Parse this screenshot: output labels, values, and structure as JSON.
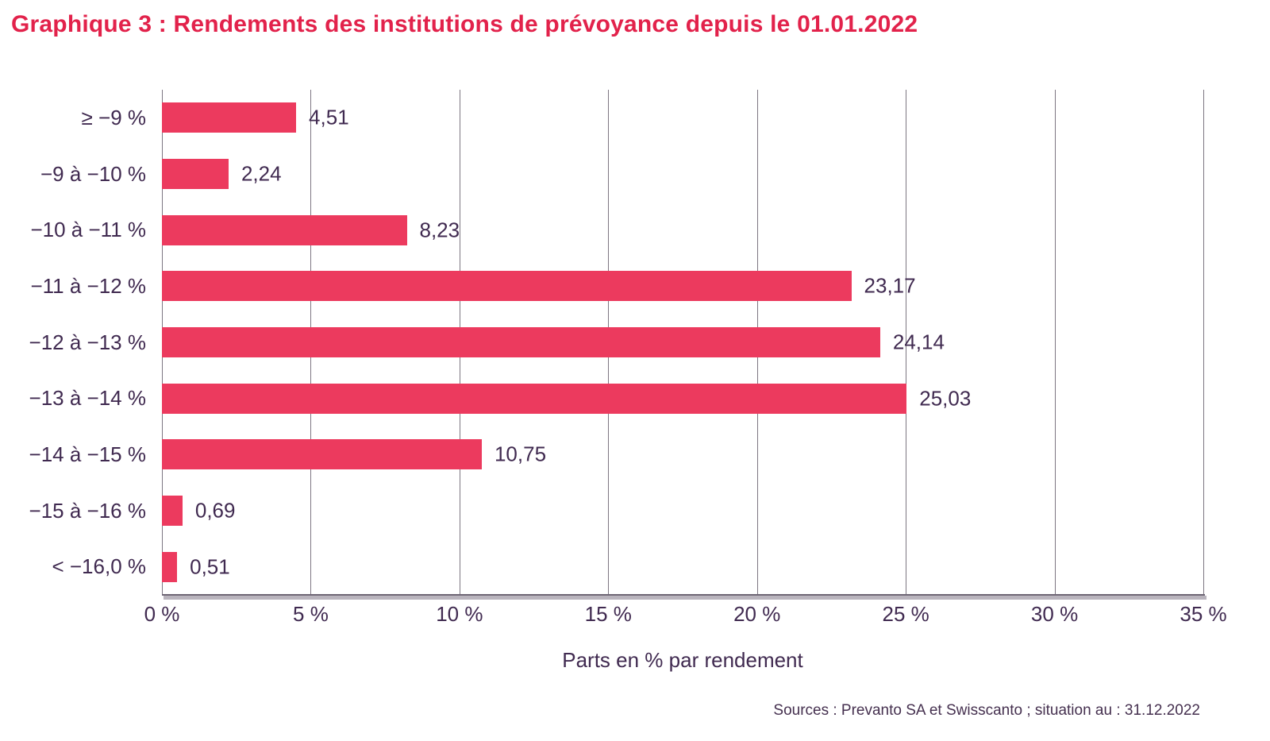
{
  "title": "Graphique 3 : Rendements des institutions de prévoyance depuis le 01.01.2022",
  "source_note": "Sources : Prevanto SA et Swisscanto ; situation au : 31.12.2022",
  "colors": {
    "title": "#E2224B",
    "bar": "#EC3A5E",
    "text": "#402A50",
    "gridline": "#7D7682",
    "axis_shadow": "#B9B4BD",
    "background": "#FFFFFF"
  },
  "chart_data": {
    "type": "bar",
    "orientation": "horizontal",
    "title": "Graphique 3 : Rendements des institutions de prévoyance depuis le 01.01.2022",
    "categories": [
      "≥ −9 %",
      "−9 à −10 %",
      "−10 à −11 %",
      "−11 à −12 %",
      "−12 à −13 %",
      "−13 à −14 %",
      "−14 à −15 %",
      "−15 à −16 %",
      "< −16,0 %"
    ],
    "values": [
      4.51,
      2.24,
      8.23,
      23.17,
      24.14,
      25.03,
      10.75,
      0.69,
      0.51
    ],
    "value_labels": [
      "4,51",
      "2,24",
      "8,23",
      "23,17",
      "24,14",
      "25,03",
      "10,75",
      "0,69",
      "0,51"
    ],
    "xlabel": "Parts en % par rendement",
    "ylabel": "",
    "x_ticks": [
      "0 %",
      "5 %",
      "10 %",
      "15 %",
      "20 %",
      "25 %",
      "30 %",
      "35 %"
    ],
    "x_tick_values": [
      0,
      5,
      10,
      15,
      20,
      25,
      30,
      35
    ],
    "xlim": [
      0,
      35
    ],
    "grid": true,
    "legend": false
  }
}
